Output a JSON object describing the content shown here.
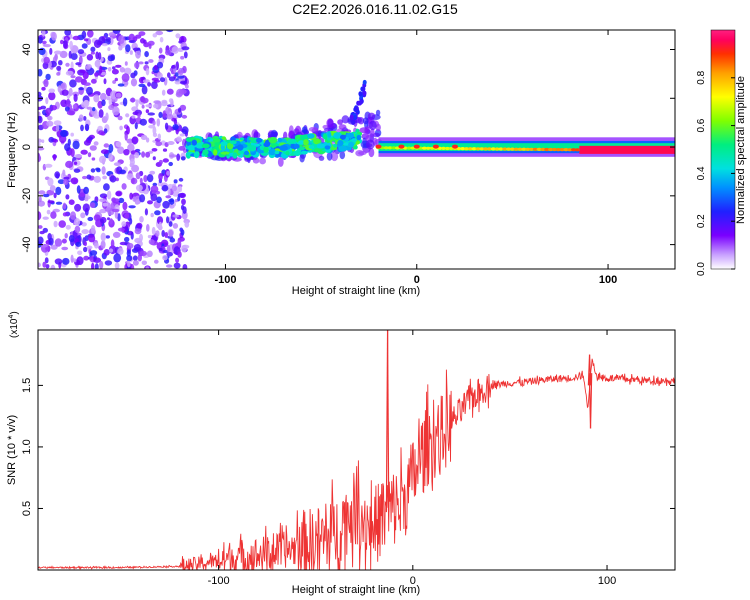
{
  "figure_title": "C2E2.2026.016.11.02.G15",
  "chart_data": [
    {
      "type": "heatmap",
      "panel": "top",
      "xlabel": "Height of straight line (km)",
      "ylabel": "Frequency (Hz)",
      "xlim": [
        -198,
        135
      ],
      "ylim": [
        -50,
        48
      ],
      "xticks": [
        -100,
        0,
        100
      ],
      "xtick_labels": [
        "-100",
        "0",
        "100"
      ],
      "yticks": [
        -40,
        -20,
        0,
        20,
        40
      ],
      "ytick_labels": [
        "-40",
        "-20",
        "0",
        "20",
        "40"
      ],
      "colorbar": {
        "label": "Normalized spectral amplitude",
        "range": [
          0,
          1
        ],
        "ticks": [
          0.0,
          0.2,
          0.4,
          0.6,
          0.8
        ],
        "tick_labels": [
          "0.0",
          "0.2",
          "0.4",
          "0.6",
          "0.8"
        ]
      },
      "regions": [
        {
          "description": "noise",
          "x_range": [
            -198,
            -120
          ],
          "freq_range": [
            -50,
            48
          ],
          "amplitude_range": [
            0.05,
            0.25
          ]
        },
        {
          "description": "broadband signal",
          "x_range": [
            -120,
            -30
          ],
          "freq_range": [
            -8,
            10
          ],
          "amplitude_range": [
            0.3,
            0.6
          ]
        },
        {
          "description": "narrowband carrier",
          "x_range": [
            -20,
            135
          ],
          "freq_range": [
            -2,
            2
          ],
          "amplitude_range": [
            0.6,
            1.0
          ]
        }
      ]
    },
    {
      "type": "line",
      "panel": "bottom",
      "xlabel": "Height of straight line (km)",
      "ylabel": "SNR (10 * v/v)",
      "y_multiplier_label": "(x10",
      "y_multiplier_exp": "4",
      "y_multiplier_close": ")",
      "xlim": [
        -193,
        135
      ],
      "ylim": [
        0,
        1.95
      ],
      "xticks": [
        -100,
        0,
        100
      ],
      "xtick_labels": [
        "-100",
        "0",
        "100"
      ],
      "yticks": [
        0.5,
        1.0,
        1.5
      ],
      "ytick_labels": [
        "0.5",
        "1.0",
        "1.5"
      ],
      "line_color": "#ee3333",
      "series": [
        {
          "name": "SNR",
          "x": [
            -193,
            -150,
            -120,
            -110,
            -100,
            -90,
            -80,
            -70,
            -60,
            -50,
            -40,
            -35,
            -30,
            -25,
            -20,
            -15,
            -10,
            -5,
            0,
            5,
            10,
            15,
            20,
            25,
            30,
            40,
            50,
            60,
            70,
            80,
            88,
            90,
            92,
            95,
            100,
            110,
            120,
            135
          ],
          "y": [
            0.02,
            0.02,
            0.03,
            0.05,
            0.08,
            0.1,
            0.12,
            0.15,
            0.18,
            0.22,
            0.3,
            0.4,
            0.5,
            0.4,
            0.35,
            0.45,
            0.5,
            0.55,
            0.75,
            0.95,
            1.05,
            1.1,
            1.2,
            1.3,
            1.4,
            1.5,
            1.52,
            1.53,
            1.55,
            1.56,
            1.58,
            1.3,
            1.7,
            1.57,
            1.56,
            1.55,
            1.54,
            1.54
          ],
          "spikes": [
            {
              "x": -13,
              "y": 1.95
            },
            {
              "x": 91,
              "y": 1.75
            },
            {
              "x": 91.5,
              "y": 1.15
            }
          ]
        }
      ],
      "noise_envelope": [
        {
          "x_range": [
            -120,
            -100
          ],
          "amplitude": 0.1
        },
        {
          "x_range": [
            -100,
            -60
          ],
          "amplitude": 0.25
        },
        {
          "x_range": [
            -60,
            -20
          ],
          "amplitude": 0.5
        },
        {
          "x_range": [
            -20,
            20
          ],
          "amplitude": 0.55
        },
        {
          "x_range": [
            20,
            40
          ],
          "amplitude": 0.2
        },
        {
          "x_range": [
            40,
            135
          ],
          "amplitude": 0.05
        }
      ]
    }
  ]
}
